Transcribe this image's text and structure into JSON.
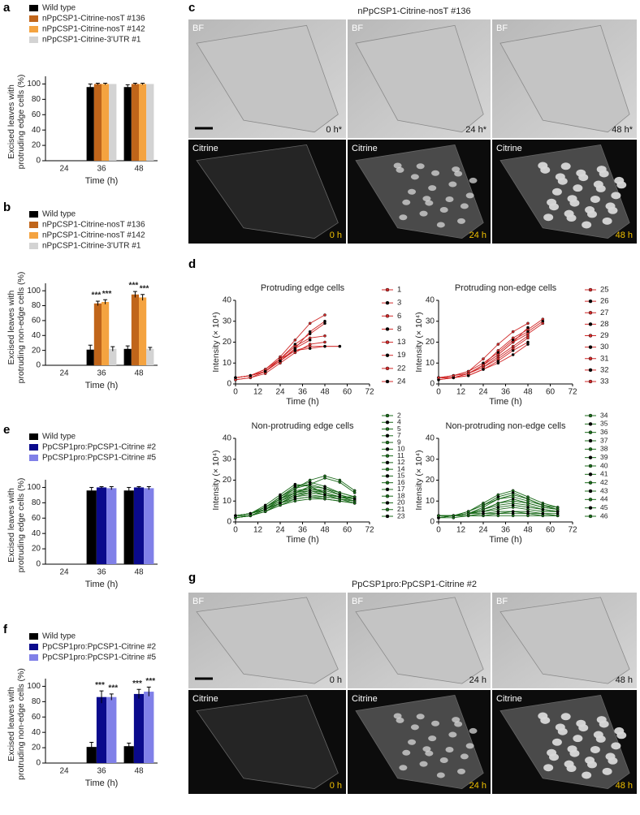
{
  "panel_labels": [
    "a",
    "b",
    "c",
    "d",
    "e",
    "f",
    "g"
  ],
  "image_panels": [
    {
      "title": "nPpCSP1-Citrine-nosT #136",
      "bf_label": "BF",
      "citrine_label": "Citrine",
      "bf_times": [
        "0 h*",
        "24 h*",
        "48 h*"
      ],
      "citrine_times": [
        "0 h",
        "24 h",
        "48 h"
      ]
    },
    {
      "title": "PpCSP1pro:PpCSP1-Citrine #2",
      "bf_label": "BF",
      "citrine_label": "Citrine",
      "bf_times": [
        "0 h",
        "24 h",
        "48 h"
      ],
      "citrine_times": [
        "0 h",
        "24 h",
        "48 h"
      ]
    }
  ],
  "chart_data": [
    {
      "type": "bar",
      "y_label": [
        "Excised leaves with",
        "protruding edge cells (%)"
      ],
      "x_label": "Time (h)",
      "categories": [
        "24",
        "36",
        "48"
      ],
      "ylim": [
        0,
        110
      ],
      "yticks": [
        0,
        20,
        40,
        60,
        80,
        100
      ],
      "series": [
        {
          "name": "Wild type",
          "color": "#000000",
          "values": [
            0,
            96,
            96
          ],
          "errors": [
            0,
            4,
            3
          ]
        },
        {
          "name": "nPpCSP1-Citrine-nosT #136",
          "color": "#c0651a",
          "values": [
            0,
            100,
            100
          ],
          "errors": [
            0,
            1,
            1
          ]
        },
        {
          "name": "nPpCSP1-Citrine-nosT #142",
          "color": "#f4a340",
          "values": [
            0,
            100,
            100
          ],
          "errors": [
            0,
            1,
            1
          ]
        },
        {
          "name": "nPpCSP1-Citrine-3'UTR #1",
          "color": "#d3d3d3",
          "values": [
            0,
            100,
            100
          ],
          "errors": [
            0,
            0,
            0
          ]
        }
      ]
    },
    {
      "type": "bar",
      "y_label": [
        "Excised leaves with",
        "protruding non-edge cells (%)"
      ],
      "x_label": "Time (h)",
      "categories": [
        "24",
        "36",
        "48"
      ],
      "ylim": [
        0,
        110
      ],
      "yticks": [
        0,
        20,
        40,
        60,
        80,
        100
      ],
      "series": [
        {
          "name": "Wild type",
          "color": "#000000",
          "values": [
            0,
            21,
            22
          ],
          "errors": [
            0,
            6,
            4
          ]
        },
        {
          "name": "nPpCSP1-Citrine-nosT #136",
          "color": "#c0651a",
          "values": [
            0,
            83,
            95
          ],
          "errors": [
            0,
            3,
            4
          ],
          "markers": [
            null,
            "***",
            "***"
          ]
        },
        {
          "name": "nPpCSP1-Citrine-nosT #142",
          "color": "#f4a340",
          "values": [
            0,
            85,
            91
          ],
          "errors": [
            0,
            3,
            4
          ],
          "markers": [
            null,
            "***",
            "***"
          ]
        },
        {
          "name": "nPpCSP1-Citrine-3'UTR #1",
          "color": "#d3d3d3",
          "values": [
            0,
            22,
            22
          ],
          "errors": [
            0,
            3,
            2
          ]
        }
      ]
    },
    {
      "type": "bar",
      "y_label": [
        "Excised leaves with",
        "protruding edge cells (%)"
      ],
      "x_label": "Time (h)",
      "categories": [
        "24",
        "36",
        "48"
      ],
      "ylim": [
        0,
        110
      ],
      "yticks": [
        0,
        20,
        40,
        60,
        80,
        100
      ],
      "series": [
        {
          "name": "Wild type",
          "color": "#000000",
          "values": [
            0,
            96,
            96
          ],
          "errors": [
            0,
            4,
            4
          ]
        },
        {
          "name": "PpCSP1pro:PpCSP1-Citrine #2",
          "color": "#0a0a8c",
          "values": [
            0,
            100,
            100
          ],
          "errors": [
            0,
            1,
            1
          ]
        },
        {
          "name": "PpCSP1pro:PpCSP1-Citrine #5",
          "color": "#8080e8",
          "values": [
            0,
            99,
            99
          ],
          "errors": [
            0,
            2,
            2
          ]
        }
      ]
    },
    {
      "type": "bar",
      "y_label": [
        "Excised leaves with",
        "protruding non-edge cells (%)"
      ],
      "x_label": "Time (h)",
      "categories": [
        "24",
        "36",
        "48"
      ],
      "ylim": [
        0,
        110
      ],
      "yticks": [
        0,
        20,
        40,
        60,
        80,
        100
      ],
      "series": [
        {
          "name": "Wild type",
          "color": "#000000",
          "values": [
            0,
            21,
            22
          ],
          "errors": [
            0,
            6,
            4
          ]
        },
        {
          "name": "PpCSP1pro:PpCSP1-Citrine #2",
          "color": "#0a0a8c",
          "values": [
            0,
            86,
            90
          ],
          "errors": [
            0,
            8,
            6
          ],
          "markers": [
            null,
            "***",
            "***"
          ]
        },
        {
          "name": "PpCSP1pro:PpCSP1-Citrine #5",
          "color": "#8080e8",
          "values": [
            0,
            86,
            93
          ],
          "errors": [
            0,
            4,
            6
          ],
          "markers": [
            null,
            "***",
            "***"
          ]
        }
      ]
    },
    {
      "type": "line",
      "title": "Protruding edge cells",
      "y_label": "Intensity (× 10⁴)",
      "x_label": "Time (h)",
      "color": "#d02828",
      "xlim": [
        0,
        72
      ],
      "xticks": [
        0,
        12,
        24,
        36,
        48,
        60,
        72
      ],
      "ylim": [
        0,
        40
      ],
      "yticks": [
        0,
        10,
        20,
        30,
        40
      ],
      "x": [
        0,
        8,
        16,
        24,
        32,
        40,
        48,
        56,
        64
      ],
      "series": [
        {
          "name": "1",
          "values": [
            3,
            4,
            7,
            13,
            21,
            29,
            33,
            null,
            null
          ]
        },
        {
          "name": "3",
          "values": [
            3,
            4,
            6,
            12,
            19,
            24,
            29,
            null,
            null
          ]
        },
        {
          "name": "6",
          "values": [
            2,
            3,
            6,
            12,
            18,
            22,
            23,
            null,
            null
          ]
        },
        {
          "name": "8",
          "values": [
            3,
            4,
            6,
            11,
            17,
            21,
            null,
            null,
            null
          ]
        },
        {
          "name": "13",
          "values": [
            3,
            4,
            7,
            12,
            16,
            18,
            18,
            18,
            null
          ]
        },
        {
          "name": "19",
          "values": [
            3,
            4,
            6,
            11,
            17,
            25,
            30,
            null,
            null
          ]
        },
        {
          "name": "22",
          "values": [
            2,
            3,
            5,
            10,
            15,
            19,
            20,
            null,
            null
          ]
        },
        {
          "name": "24",
          "values": [
            3,
            4,
            6,
            11,
            16,
            17,
            18,
            18,
            null
          ]
        }
      ]
    },
    {
      "type": "line",
      "title": "Protruding non-edge cells",
      "y_label": "Intensity (× 10⁴)",
      "x_label": "Time (h)",
      "color": "#d02828",
      "xlim": [
        0,
        72
      ],
      "xticks": [
        0,
        12,
        24,
        36,
        48,
        60,
        72
      ],
      "ylim": [
        0,
        40
      ],
      "yticks": [
        0,
        10,
        20,
        30,
        40
      ],
      "x": [
        0,
        8,
        16,
        24,
        32,
        40,
        48,
        56,
        64
      ],
      "series": [
        {
          "name": "25",
          "values": [
            3,
            3,
            5,
            9,
            16,
            22,
            26,
            31,
            null
          ]
        },
        {
          "name": "26",
          "values": [
            3,
            4,
            6,
            10,
            15,
            21,
            25,
            30,
            null
          ]
        },
        {
          "name": "27",
          "values": [
            3,
            3,
            5,
            8,
            13,
            18,
            23,
            null,
            null
          ]
        },
        {
          "name": "28",
          "values": [
            2,
            3,
            5,
            9,
            14,
            20,
            27,
            null,
            null
          ]
        },
        {
          "name": "29",
          "values": [
            3,
            4,
            6,
            12,
            19,
            25,
            29,
            null,
            null
          ]
        },
        {
          "name": "30",
          "values": [
            3,
            3,
            4,
            7,
            11,
            16,
            20,
            null,
            null
          ]
        },
        {
          "name": "31",
          "values": [
            3,
            3,
            5,
            8,
            12,
            17,
            22,
            null,
            null
          ]
        },
        {
          "name": "32",
          "values": [
            2,
            3,
            4,
            7,
            10,
            14,
            19,
            null,
            null
          ]
        },
        {
          "name": "33",
          "values": [
            3,
            4,
            5,
            9,
            14,
            20,
            24,
            29,
            null
          ]
        }
      ]
    },
    {
      "type": "line",
      "title": "Non-protruding edge cells",
      "y_label": "Intensity (× 10⁴)",
      "x_label": "Time (h)",
      "color": "#1a6b1a",
      "xlim": [
        0,
        72
      ],
      "xticks": [
        0,
        12,
        24,
        36,
        48,
        60,
        72
      ],
      "ylim": [
        0,
        40
      ],
      "yticks": [
        0,
        10,
        20,
        30,
        40
      ],
      "x": [
        0,
        8,
        16,
        24,
        32,
        40,
        48,
        56,
        64
      ],
      "series": [
        {
          "name": "2",
          "values": [
            3,
            4,
            6,
            10,
            14,
            16,
            15,
            13,
            11
          ]
        },
        {
          "name": "4",
          "values": [
            3,
            4,
            7,
            12,
            17,
            19,
            17,
            14,
            12
          ]
        },
        {
          "name": "5",
          "values": [
            2,
            3,
            6,
            11,
            16,
            20,
            22,
            20,
            15
          ]
        },
        {
          "name": "7",
          "values": [
            3,
            4,
            8,
            13,
            18,
            17,
            14,
            12,
            11
          ]
        },
        {
          "name": "9",
          "values": [
            3,
            4,
            7,
            11,
            15,
            16,
            14,
            12,
            10
          ]
        },
        {
          "name": "10",
          "values": [
            2,
            3,
            6,
            10,
            13,
            14,
            13,
            12,
            11
          ]
        },
        {
          "name": "11",
          "values": [
            3,
            4,
            7,
            12,
            16,
            18,
            21,
            19,
            14
          ]
        },
        {
          "name": "12",
          "values": [
            3,
            4,
            6,
            9,
            12,
            13,
            12,
            11,
            10
          ]
        },
        {
          "name": "14",
          "values": [
            2,
            3,
            5,
            9,
            13,
            15,
            14,
            12,
            10
          ]
        },
        {
          "name": "15",
          "values": [
            3,
            4,
            7,
            11,
            14,
            15,
            13,
            11,
            9
          ]
        },
        {
          "name": "16",
          "values": [
            3,
            3,
            5,
            8,
            11,
            12,
            12,
            11,
            10
          ]
        },
        {
          "name": "17",
          "values": [
            2,
            3,
            5,
            9,
            12,
            14,
            13,
            12,
            12
          ]
        },
        {
          "name": "18",
          "values": [
            3,
            4,
            6,
            10,
            14,
            17,
            16,
            14,
            12
          ]
        },
        {
          "name": "20",
          "values": [
            3,
            4,
            6,
            9,
            11,
            12,
            11,
            10,
            9
          ]
        },
        {
          "name": "21",
          "values": [
            2,
            3,
            5,
            8,
            10,
            11,
            11,
            10,
            9
          ]
        },
        {
          "name": "23",
          "values": [
            3,
            4,
            7,
            12,
            17,
            18,
            16,
            13,
            11
          ]
        }
      ]
    },
    {
      "type": "line",
      "title": "Non-protruding non-edge cells",
      "y_label": "Intensity (× 10⁴)",
      "x_label": "Time (h)",
      "color": "#1a6b1a",
      "xlim": [
        0,
        72
      ],
      "xticks": [
        0,
        12,
        24,
        36,
        48,
        60,
        72
      ],
      "ylim": [
        0,
        40
      ],
      "yticks": [
        0,
        10,
        20,
        30,
        40
      ],
      "x": [
        0,
        8,
        16,
        24,
        32,
        40,
        48,
        56,
        64
      ],
      "series": [
        {
          "name": "34",
          "values": [
            3,
            3,
            5,
            9,
            13,
            15,
            12,
            9,
            7
          ]
        },
        {
          "name": "35",
          "values": [
            3,
            3,
            5,
            8,
            12,
            14,
            11,
            8,
            6
          ]
        },
        {
          "name": "36",
          "values": [
            2,
            3,
            4,
            7,
            11,
            13,
            11,
            8,
            6
          ]
        },
        {
          "name": "37",
          "values": [
            3,
            3,
            4,
            6,
            9,
            11,
            9,
            7,
            6
          ]
        },
        {
          "name": "38",
          "values": [
            2,
            3,
            4,
            5,
            6,
            7,
            6,
            5,
            5
          ]
        },
        {
          "name": "39",
          "values": [
            3,
            3,
            3,
            4,
            4,
            5,
            4,
            4,
            3
          ]
        },
        {
          "name": "40",
          "values": [
            2,
            3,
            4,
            6,
            8,
            9,
            8,
            6,
            5
          ]
        },
        {
          "name": "41",
          "values": [
            3,
            3,
            3,
            3,
            4,
            4,
            4,
            3,
            3
          ]
        },
        {
          "name": "42",
          "values": [
            2,
            2,
            3,
            3,
            3,
            3,
            3,
            3,
            3
          ]
        },
        {
          "name": "43",
          "values": [
            3,
            3,
            4,
            5,
            7,
            8,
            7,
            6,
            5
          ]
        },
        {
          "name": "44",
          "values": [
            3,
            3,
            5,
            8,
            11,
            12,
            10,
            8,
            7
          ]
        },
        {
          "name": "45",
          "values": [
            2,
            3,
            4,
            4,
            5,
            5,
            5,
            4,
            4
          ]
        },
        {
          "name": "46",
          "values": [
            3,
            3,
            4,
            6,
            9,
            10,
            9,
            7,
            6
          ]
        }
      ]
    }
  ]
}
